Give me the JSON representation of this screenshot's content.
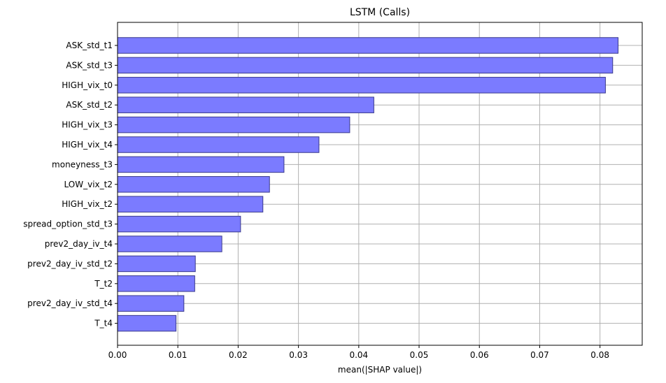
{
  "chart_data": {
    "type": "bar",
    "orientation": "horizontal",
    "title": "LSTM (Calls)",
    "xlabel": "mean(|SHAP value|)",
    "ylabel": "",
    "xlim": [
      0,
      0.087
    ],
    "xticks": [
      "0.00",
      "0.01",
      "0.02",
      "0.03",
      "0.04",
      "0.05",
      "0.06",
      "0.07",
      "0.08"
    ],
    "grid": true,
    "bar_color": "#7b7bff",
    "bar_edge_color": "#3a3a8c",
    "grid_color": "#b0b0b0",
    "categories": [
      "ASK_std_t1",
      "ASK_std_t3",
      "HIGH_vix_t0",
      "ASK_std_t2",
      "HIGH_vix_t3",
      "HIGH_vix_t4",
      "moneyness_t3",
      "LOW_vix_t2",
      "HIGH_vix_t2",
      "spread_option_std_t3",
      "prev2_day_iv_t4",
      "prev2_day_iv_std_t2",
      "T_t2",
      "prev2_day_iv_std_t4",
      "T_t4"
    ],
    "values": [
      0.083,
      0.0821,
      0.0809,
      0.0425,
      0.0385,
      0.0334,
      0.0276,
      0.0252,
      0.0241,
      0.0204,
      0.0173,
      0.0129,
      0.0128,
      0.011,
      0.0097
    ]
  }
}
